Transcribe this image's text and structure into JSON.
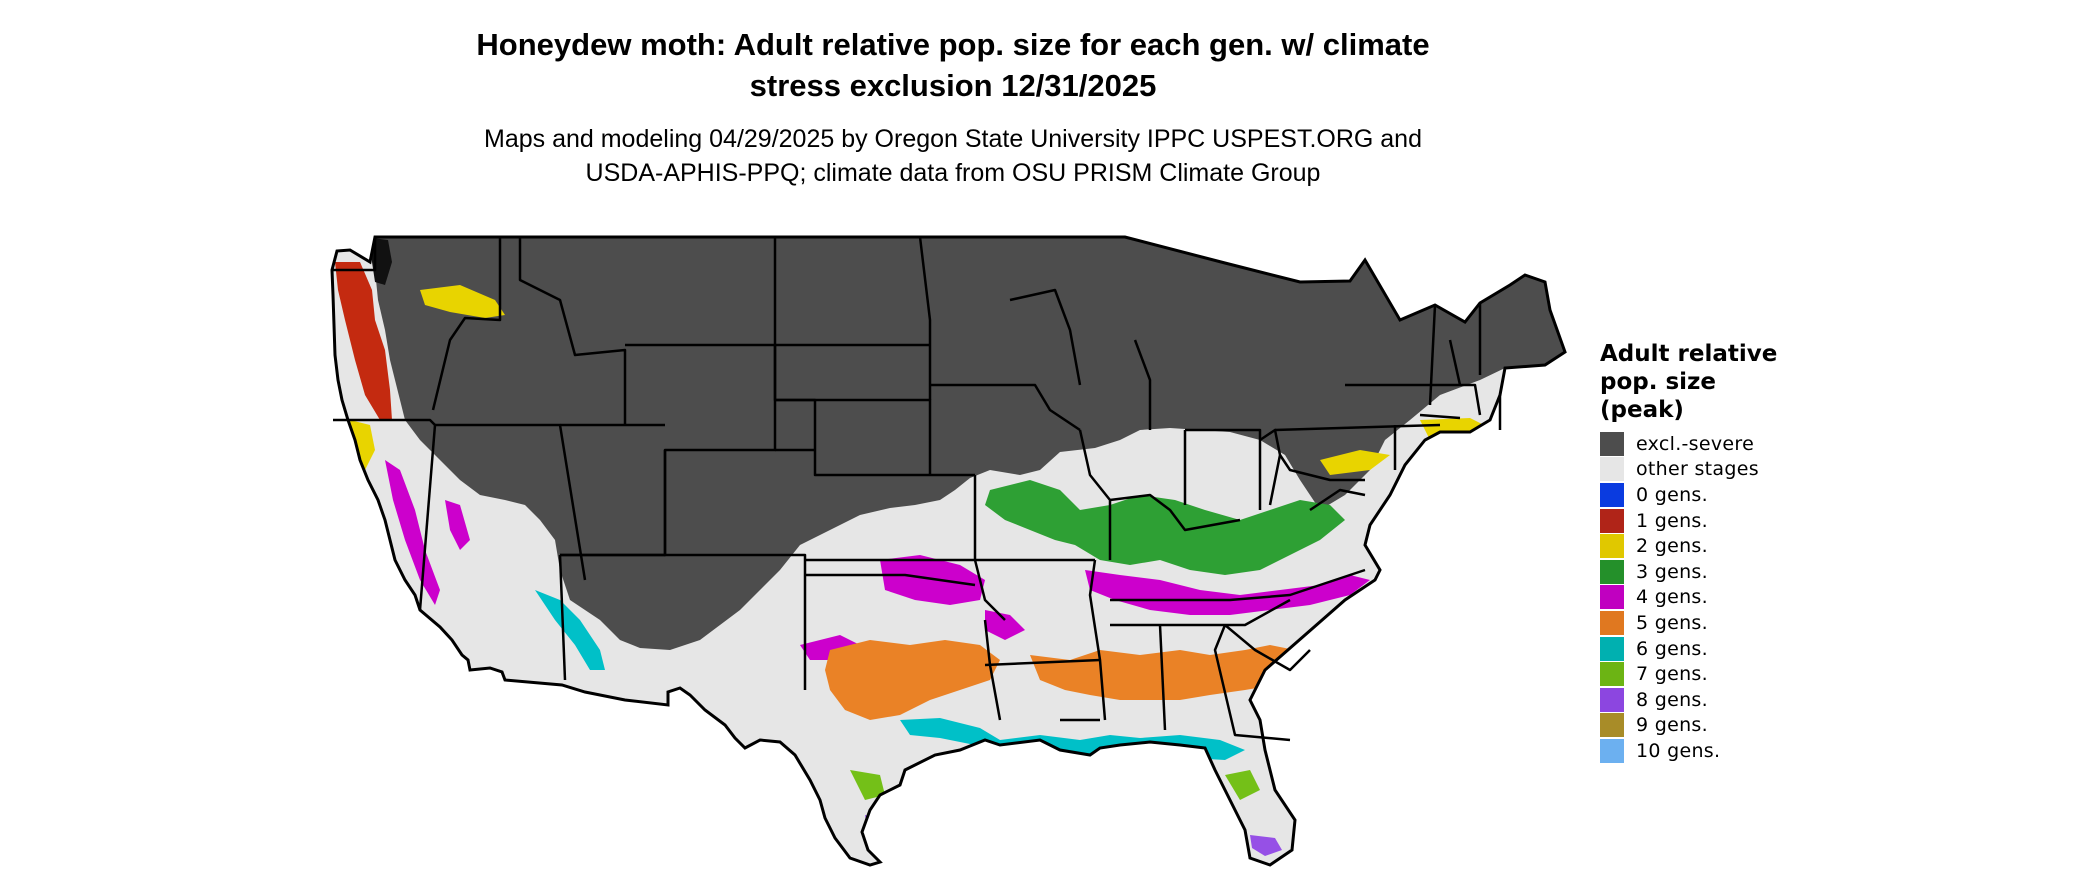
{
  "title_line1": "Honeydew moth: Adult relative pop. size for each gen. w/ climate",
  "title_line2": "stress exclusion 12/31/2025",
  "subtitle_line1": "Maps and modeling 04/29/2025 by Oregon State University IPPC USPEST.ORG and",
  "subtitle_line2": "USDA-APHIS-PPQ; climate data from OSU PRISM Climate Group",
  "legend": {
    "title_lines": [
      "Adult relative",
      "pop. size",
      "(peak)"
    ],
    "items": [
      {
        "label": "excl.-severe",
        "color": "#4d4d4d"
      },
      {
        "label": "other stages",
        "color": "#e6e6e6"
      },
      {
        "label": "0 gens.",
        "color": "#0a3be0"
      },
      {
        "label": "1 gens.",
        "color": "#b02418"
      },
      {
        "label": "2 gens.",
        "color": "#e0c800"
      },
      {
        "label": "3 gens.",
        "color": "#24902a"
      },
      {
        "label": "4 gens.",
        "color": "#c000c0"
      },
      {
        "label": "5 gens.",
        "color": "#e07820"
      },
      {
        "label": "6 gens.",
        "color": "#00b0b0"
      },
      {
        "label": "7 gens.",
        "color": "#6cb414"
      },
      {
        "label": "8 gens.",
        "color": "#8c46e0"
      },
      {
        "label": "9 gens.",
        "color": "#a88c28"
      },
      {
        "label": "10 gens.",
        "color": "#6cb0f0"
      }
    ]
  }
}
